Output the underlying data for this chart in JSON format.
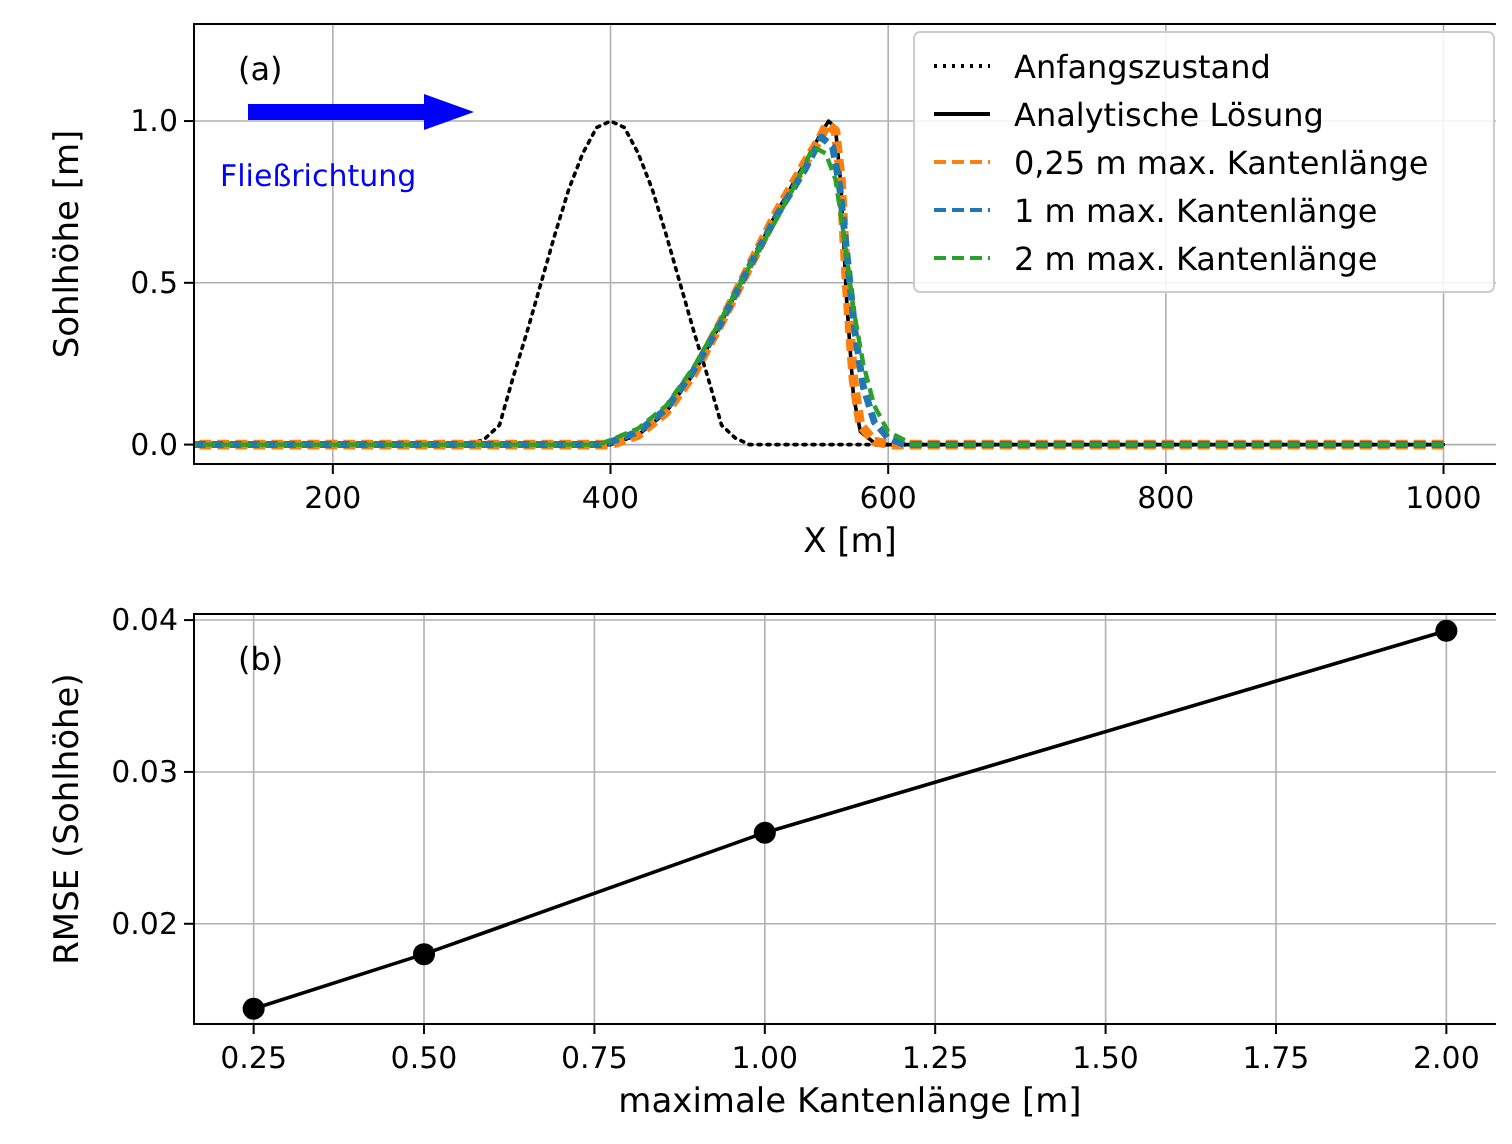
{
  "chart_data": [
    {
      "type": "line",
      "xlabel": "X [m]",
      "ylabel": "Sohlhöhe [m]",
      "xlim": [
        100,
        1045
      ],
      "ylim": [
        -0.06,
        1.3
      ],
      "xticks": [
        200,
        400,
        600,
        800,
        1000
      ],
      "yticks": [
        {
          "value": 0,
          "label": "0.0"
        },
        0.5,
        {
          "value": 1,
          "label": "1.0"
        }
      ],
      "grid": true,
      "legend": "top right",
      "annotations": [
        "(a)",
        "Fließrichtung"
      ],
      "series": [
        {
          "name": "Anfangszustand",
          "color": "#000000",
          "line_style": "dotted",
          "x": [
            100,
            300,
            310,
            320,
            330,
            340,
            350,
            360,
            370,
            380,
            390,
            400,
            410,
            420,
            430,
            440,
            450,
            460,
            470,
            480,
            490,
            500,
            1000
          ],
          "values": [
            0,
            0,
            0.02,
            0.06,
            0.21,
            0.35,
            0.5,
            0.65,
            0.79,
            0.9,
            0.98,
            1,
            0.98,
            0.9,
            0.79,
            0.65,
            0.5,
            0.35,
            0.21,
            0.06,
            0.02,
            0,
            0
          ]
        },
        {
          "name": "Analytische Lösung",
          "color": "#000000",
          "line_style": "solid",
          "x": [
            100,
            400,
            420,
            440,
            460,
            480,
            500,
            520,
            540,
            550,
            557,
            562,
            566,
            570,
            575,
            580,
            590,
            600,
            1000
          ],
          "values": [
            0,
            0,
            0.03,
            0.1,
            0.22,
            0.38,
            0.55,
            0.72,
            0.87,
            0.95,
            1,
            0.98,
            0.8,
            0.45,
            0.15,
            0.04,
            0.005,
            0,
            0
          ]
        },
        {
          "name": "0,25 m max. Kantenlänge",
          "color": "#ff7f0e",
          "line_style": "dashed",
          "x": [
            100,
            400,
            420,
            440,
            460,
            480,
            500,
            520,
            540,
            550,
            556,
            562,
            566,
            570,
            575,
            580,
            590,
            602,
            1000
          ],
          "values": [
            0,
            0,
            0.03,
            0.1,
            0.22,
            0.38,
            0.55,
            0.72,
            0.87,
            0.94,
            0.99,
            0.97,
            0.82,
            0.5,
            0.2,
            0.06,
            0.01,
            0,
            0
          ]
        },
        {
          "name": "1 m max. Kantenlänge",
          "color": "#1f77b4",
          "line_style": "dashed",
          "x": [
            100,
            395,
            420,
            440,
            460,
            480,
            500,
            520,
            540,
            552,
            560,
            565,
            570,
            576,
            582,
            590,
            600,
            612,
            1000
          ],
          "values": [
            0,
            0,
            0.04,
            0.11,
            0.23,
            0.38,
            0.55,
            0.71,
            0.85,
            0.95,
            0.92,
            0.8,
            0.6,
            0.35,
            0.18,
            0.07,
            0.02,
            0,
            0
          ]
        },
        {
          "name": "2 m max. Kantenlänge",
          "color": "#2ca02c",
          "line_style": "dashed",
          "x": [
            100,
            392,
            420,
            440,
            460,
            480,
            500,
            520,
            535,
            546,
            555,
            562,
            568,
            575,
            582,
            590,
            600,
            618,
            1000
          ],
          "values": [
            0,
            0,
            0.05,
            0.12,
            0.24,
            0.39,
            0.55,
            0.7,
            0.82,
            0.92,
            0.9,
            0.82,
            0.65,
            0.42,
            0.25,
            0.12,
            0.04,
            0,
            0
          ]
        }
      ]
    },
    {
      "type": "line",
      "xlabel": "maximale Kantenlänge [m]",
      "ylabel": "RMSE (Sohlhöhe)",
      "xlim": [
        0.1625,
        2.0875
      ],
      "ylim": [
        0.0134,
        0.0404
      ],
      "xticks": [
        {
          "value": 0.25,
          "label": "0.25"
        },
        {
          "value": 0.5,
          "label": "0.50"
        },
        {
          "value": 0.75,
          "label": "0.75"
        },
        {
          "value": 1,
          "label": "1.00"
        },
        {
          "value": 1.25,
          "label": "1.25"
        },
        {
          "value": 1.5,
          "label": "1.50"
        },
        {
          "value": 1.75,
          "label": "1.75"
        },
        {
          "value": 2,
          "label": "2.00"
        }
      ],
      "yticks": [
        0.02,
        0.03,
        {
          "value": 0.04,
          "label": "0.04"
        }
      ],
      "grid": true,
      "marker": "circle",
      "annotations": [
        "(b)"
      ],
      "series": [
        {
          "color": "#000000",
          "x": [
            0.25,
            0.5,
            1,
            2
          ],
          "values": [
            0.0144,
            0.018,
            0.026,
            0.0393
          ]
        }
      ]
    }
  ]
}
